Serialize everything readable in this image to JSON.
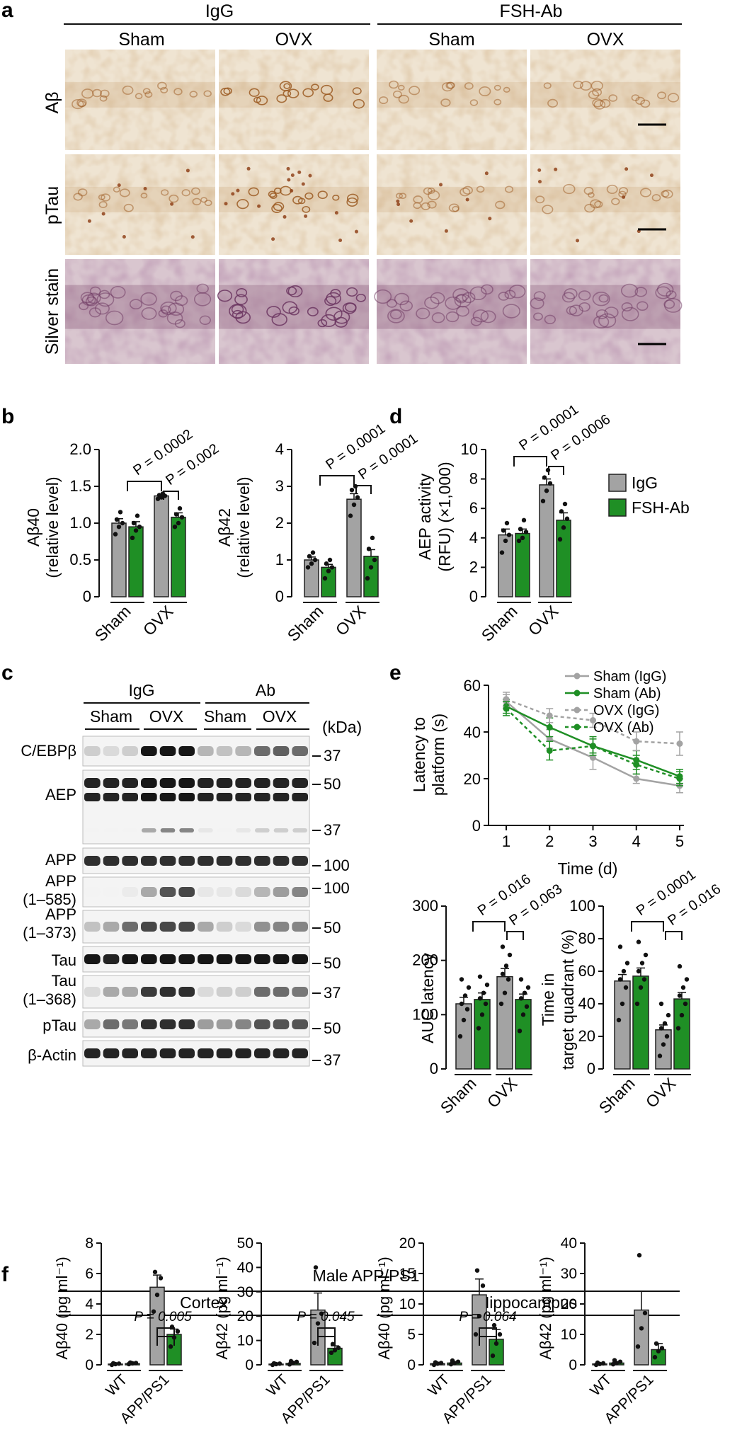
{
  "colors": {
    "igg": "#a3a3a3",
    "ab": "#1f8f25",
    "bar_stroke": "#222",
    "micro_bg": "#efe4d2",
    "silver_bg": "#d9c6cf"
  },
  "panel_letters": {
    "a": "a",
    "b": "b",
    "c": "c",
    "d": "d",
    "e": "e",
    "f": "f"
  },
  "panel_a": {
    "group_headers": [
      "IgG",
      "FSH-Ab"
    ],
    "column_headers": [
      "Sham",
      "OVX",
      "Sham",
      "OVX"
    ],
    "row_labels": [
      "Aβ",
      "pTau",
      "Silver stain"
    ]
  },
  "panel_b": {
    "charts": [
      {
        "ylabel": "Aβ40",
        "ylabel2": "(relative level)",
        "ticks": [
          "0",
          "0.5",
          "1.0",
          "1.5",
          "2.0"
        ],
        "pvals": [
          "P = 0.0002",
          "P = 0.002"
        ]
      },
      {
        "ylabel": "Aβ42",
        "ylabel2": "(relative level)",
        "ticks": [
          "0",
          "1",
          "2",
          "3",
          "4"
        ],
        "pvals": [
          "P = 0.0001",
          "P = 0.0001"
        ]
      }
    ],
    "xlabels": [
      "Sham",
      "OVX"
    ]
  },
  "panel_d": {
    "ylabel": "AEP activity",
    "ylabel2": "(RFU) (×1,000)",
    "ticks": [
      "0",
      "2",
      "4",
      "6",
      "8",
      "10"
    ],
    "pvals": [
      "P = 0.0001",
      "P = 0.0006"
    ],
    "xlabels": [
      "Sham",
      "OVX"
    ],
    "legend": [
      "IgG",
      "FSH-Ab"
    ]
  },
  "panel_c": {
    "group_headers": [
      "IgG",
      "Ab"
    ],
    "sub_headers": [
      "Sham",
      "OVX",
      "Sham",
      "OVX"
    ],
    "unit": "(kDa)",
    "rows": [
      {
        "label": "C/EBPβ",
        "mw": "37"
      },
      {
        "label": "AEP",
        "mw": "50"
      },
      {
        "label": "",
        "mw": "37"
      },
      {
        "label": "APP",
        "mw": "100"
      },
      {
        "label": "APP",
        "label2": "(1–585)",
        "mw": "100"
      },
      {
        "label": "APP",
        "label2": "(1–373)",
        "mw": "50"
      },
      {
        "label": "Tau",
        "mw": "50"
      },
      {
        "label": "Tau",
        "label2": "(1–368)",
        "mw": "37"
      },
      {
        "label": "pTau",
        "mw": "50"
      },
      {
        "label": "β-Actin",
        "mw": "37"
      }
    ]
  },
  "panel_e": {
    "line": {
      "ylabel": "Latency to",
      "ylabel2": "platform (s)",
      "xlabel": "Time (d)",
      "yticks": [
        "0",
        "20",
        "40",
        "60"
      ],
      "xticks": [
        "1",
        "2",
        "3",
        "4",
        "5"
      ],
      "legend": [
        "Sham (IgG)",
        "Sham (Ab)",
        "OVX (IgG)",
        "OVX (Ab)"
      ]
    },
    "auc": {
      "ylabel": "AUC latency",
      "ticks": [
        "0",
        "100",
        "200",
        "300"
      ],
      "pvals": [
        "P = 0.016",
        "P = 0.063"
      ],
      "xlabels": [
        "Sham",
        "OVX"
      ]
    },
    "quadrant": {
      "ylabel": "Time in",
      "ylabel2": "target quadrant (%)",
      "ticks": [
        "0",
        "20",
        "40",
        "60",
        "80",
        "100"
      ],
      "pvals": [
        "P = 0.0001",
        "P = 0.016"
      ],
      "xlabels": [
        "Sham",
        "OVX"
      ]
    }
  },
  "panel_f": {
    "title": "Male APP/PS1",
    "regions": [
      "Cortex",
      "Hippocampus"
    ],
    "charts": [
      {
        "ylabel": "Aβ40 (pg ml⁻¹)",
        "ticks": [
          "0",
          "2",
          "4",
          "6",
          "8"
        ],
        "pval": "P = 0.005"
      },
      {
        "ylabel": "Aβ42 (pg ml⁻¹)",
        "ticks": [
          "0",
          "10",
          "20",
          "30",
          "40",
          "50"
        ],
        "pval": "P = 0.045"
      },
      {
        "ylabel": "Aβ40 (pg ml⁻¹)",
        "ticks": [
          "0",
          "5",
          "10",
          "15",
          "20"
        ],
        "pval": "P = 0.064"
      },
      {
        "ylabel": "Aβ42 (pg ml⁻¹)",
        "ticks": [
          "0",
          "10",
          "20",
          "30",
          "40"
        ],
        "pval": ""
      }
    ],
    "xlabels": [
      "WT",
      "APP/PS1"
    ]
  },
  "chart_data": [
    {
      "type": "bar",
      "panel": "b-left",
      "categories": [
        "Sham",
        "OVX"
      ],
      "series": [
        {
          "name": "IgG",
          "values": [
            1.0,
            1.37
          ],
          "err": [
            0.06,
            0.02
          ]
        },
        {
          "name": "FSH-Ab",
          "values": [
            0.95,
            1.08
          ],
          "err": [
            0.07,
            0.06
          ]
        }
      ],
      "ylim": [
        0,
        2.0
      ],
      "points": [
        [
          0.85,
          0.95,
          1.0,
          1.05,
          1.15
        ],
        [
          0.8,
          0.9,
          0.95,
          1.0,
          1.1
        ],
        [
          1.33,
          1.35,
          1.37,
          1.38,
          1.4
        ],
        [
          0.95,
          1.0,
          1.08,
          1.12,
          1.2
        ]
      ]
    },
    {
      "type": "bar",
      "panel": "b-right",
      "categories": [
        "Sham",
        "OVX"
      ],
      "series": [
        {
          "name": "IgG",
          "values": [
            1.0,
            2.65
          ],
          "err": [
            0.08,
            0.15
          ]
        },
        {
          "name": "FSH-Ab",
          "values": [
            0.8,
            1.1
          ],
          "err": [
            0.08,
            0.18
          ]
        }
      ],
      "ylim": [
        0,
        4
      ],
      "points": [
        [
          0.8,
          0.9,
          1.0,
          1.1,
          1.2
        ],
        [
          0.5,
          0.7,
          0.8,
          0.9,
          1.0
        ],
        [
          2.2,
          2.5,
          2.7,
          2.9,
          3.0
        ],
        [
          0.5,
          0.8,
          1.0,
          1.3,
          1.6
        ]
      ]
    },
    {
      "type": "bar",
      "panel": "d",
      "categories": [
        "Sham",
        "OVX"
      ],
      "series": [
        {
          "name": "IgG",
          "values": [
            4.2,
            7.6
          ],
          "err": [
            0.4,
            0.4
          ]
        },
        {
          "name": "FSH-Ab",
          "values": [
            4.3,
            5.2
          ],
          "err": [
            0.3,
            0.5
          ]
        }
      ],
      "ylim": [
        0,
        10
      ],
      "points": [
        [
          3.0,
          3.8,
          4.2,
          4.5,
          5.0
        ],
        [
          3.8,
          4.0,
          4.4,
          4.6,
          5.2
        ],
        [
          6.5,
          7.2,
          7.7,
          8.1,
          8.6
        ],
        [
          3.9,
          4.7,
          5.3,
          5.8,
          6.3
        ]
      ]
    },
    {
      "type": "line",
      "panel": "e-top",
      "x": [
        1,
        2,
        3,
        4,
        5
      ],
      "series": [
        {
          "name": "Sham (IgG)",
          "values": [
            53,
            37,
            29,
            20,
            17
          ],
          "err": [
            3,
            4,
            5,
            2,
            3
          ],
          "dash": false
        },
        {
          "name": "Sham (Ab)",
          "values": [
            51,
            42,
            34,
            28,
            21
          ],
          "err": [
            3,
            4,
            4,
            4,
            3
          ],
          "dash": false
        },
        {
          "name": "OVX (IgG)",
          "values": [
            54,
            47,
            45,
            36,
            35
          ],
          "err": [
            3,
            3,
            3,
            4,
            5
          ],
          "dash": true
        },
        {
          "name": "OVX (Ab)",
          "values": [
            50,
            32,
            34,
            26,
            20
          ],
          "err": [
            3,
            4,
            3,
            4,
            3
          ],
          "dash": true
        }
      ],
      "ylim": [
        0,
        60
      ]
    },
    {
      "type": "bar",
      "panel": "e-auc",
      "categories": [
        "Sham",
        "OVX"
      ],
      "series": [
        {
          "name": "IgG",
          "values": [
            120,
            170
          ],
          "err": [
            12,
            15
          ]
        },
        {
          "name": "FSH-Ab",
          "values": [
            128,
            128
          ],
          "err": [
            12,
            10
          ]
        }
      ],
      "ylim": [
        0,
        300
      ],
      "points": [
        [
          60,
          90,
          110,
          120,
          135,
          150,
          165
        ],
        [
          75,
          100,
          120,
          130,
          140,
          155,
          170
        ],
        [
          120,
          140,
          165,
          175,
          190,
          210,
          225
        ],
        [
          70,
          100,
          115,
          130,
          140,
          150,
          165
        ]
      ]
    },
    {
      "type": "bar",
      "panel": "e-quadrant",
      "categories": [
        "Sham",
        "OVX"
      ],
      "series": [
        {
          "name": "IgG",
          "values": [
            54,
            24
          ],
          "err": [
            4,
            3
          ]
        },
        {
          "name": "FSH-Ab",
          "values": [
            57,
            43
          ],
          "err": [
            5,
            4
          ]
        }
      ],
      "ylim": [
        0,
        100
      ],
      "points": [
        [
          30,
          40,
          50,
          55,
          60,
          65,
          75
        ],
        [
          40,
          50,
          55,
          60,
          65,
          70,
          78
        ],
        [
          8,
          15,
          20,
          25,
          28,
          33,
          40
        ],
        [
          25,
          33,
          40,
          45,
          50,
          55,
          63
        ]
      ]
    },
    {
      "type": "bar",
      "panel": "f-1",
      "categories": [
        "WT",
        "APP/PS1"
      ],
      "series": [
        {
          "name": "IgG",
          "values": [
            0.05,
            5.1
          ],
          "err": [
            0.03,
            0.8
          ]
        },
        {
          "name": "FSH-Ab",
          "values": [
            0.08,
            2.0
          ],
          "err": [
            0.04,
            0.35
          ]
        }
      ],
      "ylim": [
        0,
        8
      ],
      "points": [
        [
          0,
          0.05,
          0.08,
          0.1
        ],
        [
          0.05,
          0.1,
          0.12,
          0.15
        ],
        [
          3.5,
          4.6,
          5.7,
          6.1
        ],
        [
          1.2,
          1.8,
          2.2,
          2.5
        ]
      ]
    },
    {
      "type": "bar",
      "panel": "f-2",
      "categories": [
        "WT",
        "APP/PS1"
      ],
      "series": [
        {
          "name": "IgG",
          "values": [
            0.3,
            22.5
          ],
          "err": [
            0.2,
            7
          ]
        },
        {
          "name": "FSH-Ab",
          "values": [
            0.6,
            6.8
          ],
          "err": [
            0.4,
            1.0
          ]
        }
      ],
      "ylim": [
        0,
        50
      ],
      "points": [
        [
          0,
          0.3,
          0.5,
          0.6
        ],
        [
          0.2,
          0.8,
          1.2,
          1.5
        ],
        [
          9,
          17,
          21,
          40
        ],
        [
          5,
          6,
          7,
          8.5
        ]
      ]
    },
    {
      "type": "bar",
      "panel": "f-3",
      "categories": [
        "WT",
        "APP/PS1"
      ],
      "series": [
        {
          "name": "IgG",
          "values": [
            0.2,
            11.5
          ],
          "err": [
            0.1,
            2.6
          ]
        },
        {
          "name": "FSH-Ab",
          "values": [
            0.3,
            4.2
          ],
          "err": [
            0.2,
            1.6
          ]
        }
      ],
      "ylim": [
        0,
        20
      ],
      "points": [
        [
          0,
          0.2,
          0.3,
          0.4
        ],
        [
          0.1,
          0.3,
          0.5,
          0.7
        ],
        [
          5,
          8,
          13,
          15.5
        ],
        [
          1.5,
          3.5,
          5,
          6.5
        ]
      ]
    },
    {
      "type": "bar",
      "panel": "f-4",
      "categories": [
        "WT",
        "APP/PS1"
      ],
      "series": [
        {
          "name": "IgG",
          "values": [
            0.3,
            18.0
          ],
          "err": [
            0.2,
            6.2
          ]
        },
        {
          "name": "FSH-Ab",
          "values": [
            0.6,
            5.0
          ],
          "err": [
            0.3,
            2.0
          ]
        }
      ],
      "ylim": [
        0,
        40
      ],
      "points": [
        [
          0,
          0.3,
          0.5,
          0.7
        ],
        [
          0.2,
          0.6,
          1.0,
          1.5
        ],
        [
          6,
          12,
          17,
          36
        ],
        [
          2.5,
          4.5,
          5.5,
          7
        ]
      ]
    }
  ]
}
